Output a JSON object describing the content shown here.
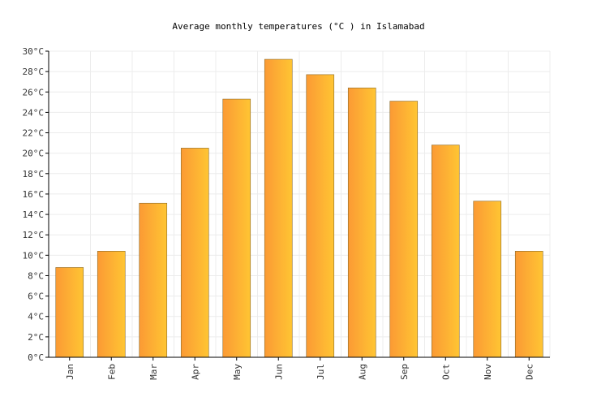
{
  "chart_data": {
    "type": "bar",
    "title": "Average monthly temperatures (°C ) in Islamabad",
    "xlabel": "",
    "ylabel": "",
    "categories": [
      "Jan",
      "Feb",
      "Mar",
      "Apr",
      "May",
      "Jun",
      "Jul",
      "Aug",
      "Sep",
      "Oct",
      "Nov",
      "Dec"
    ],
    "values": [
      8.8,
      10.4,
      15.1,
      20.5,
      25.3,
      29.2,
      27.7,
      26.4,
      25.1,
      20.8,
      15.3,
      10.4
    ],
    "ylim": [
      0,
      30
    ],
    "y_tick_step": 2,
    "y_tick_suffix": "°C",
    "grid": true,
    "legend": "none",
    "colors": {
      "bar_start": "#fb9a34",
      "bar_end": "#ffc533",
      "bar_stroke": "#8a6a2a",
      "grid": "#ececec",
      "axis": "#000000"
    }
  }
}
